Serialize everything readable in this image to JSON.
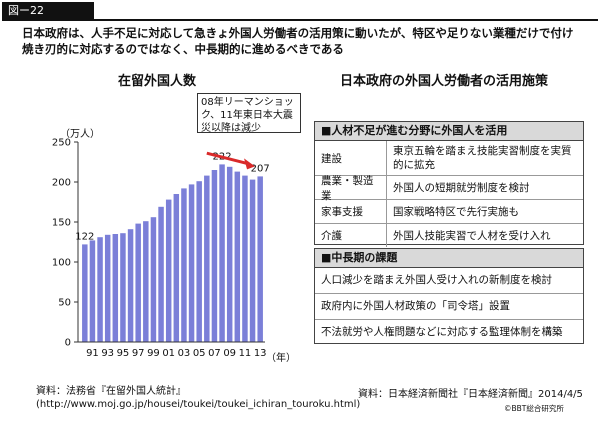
{
  "figure_label": "図ー22",
  "intro_text": "日本政府は、人手不足に対応して急きょ外国人労働者の活用策に動いたが、特区や足りない業種だけで付け焼き刃的に対応するのではなく、中長期的に進めるべきである",
  "left_title": "在留外国人数",
  "right_title": "日本政府の外国人労働者の活用施策",
  "callout_text": "08年リーマンショック、11年東日本大震災以降は減少",
  "accent_color": "#d92a2a",
  "bar_color": "#7b7fd8",
  "chart_data": {
    "type": "bar",
    "ylabel": "（万人）",
    "x_unit": "（年）",
    "ylim": [
      0,
      250
    ],
    "yticks": [
      0,
      50,
      100,
      150,
      200,
      250
    ],
    "x_tick_labels": [
      "91",
      "93",
      "95",
      "97",
      "99",
      "01",
      "03",
      "05",
      "07",
      "09",
      "11",
      "13"
    ],
    "x": [
      1990,
      1991,
      1992,
      1993,
      1994,
      1995,
      1996,
      1997,
      1998,
      1999,
      2000,
      2001,
      2002,
      2003,
      2004,
      2005,
      2006,
      2007,
      2008,
      2009,
      2010,
      2011,
      2012,
      2013
    ],
    "values": [
      122,
      127,
      131,
      134,
      135,
      136,
      141,
      148,
      151,
      156,
      169,
      178,
      185,
      192,
      197,
      201,
      208,
      215,
      222,
      219,
      213,
      208,
      203,
      207
    ],
    "data_labels": [
      {
        "index": 0,
        "text": "122"
      },
      {
        "index": 18,
        "text": "222"
      },
      {
        "index": 23,
        "text": "207"
      }
    ]
  },
  "policy_table": {
    "section1_title": "■人材不足が進む分野に外国人を活用",
    "rows": [
      {
        "label": "建設",
        "text": "東京五輪を踏まえ技能実習制度を実質的に拡充"
      },
      {
        "label": "農業・製造業",
        "text": "外国人の短期就労制度を検討"
      },
      {
        "label": "家事支援",
        "text": "国家戦略特区で先行実施も"
      },
      {
        "label": "介護",
        "text": "外国人技能実習で人材を受け入れ"
      }
    ],
    "section2_title": "■中長期の課題",
    "issues": [
      "人口減少を踏まえ外国人受け入れの新制度を検討",
      "政府内に外国人材政策の「司令塔」設置",
      "不法就労や人権問題などに対応する監理体制を構築"
    ]
  },
  "source_left_line1": "資料：法務省『在留外国人統計』",
  "source_left_line2": "(http://www.moj.go.jp/housei/toukei/toukei_ichiran_touroku.html)",
  "source_right": "資料：日本経済新聞社『日本経済新聞』2014/4/5",
  "copyright": "©BBT総合研究所"
}
